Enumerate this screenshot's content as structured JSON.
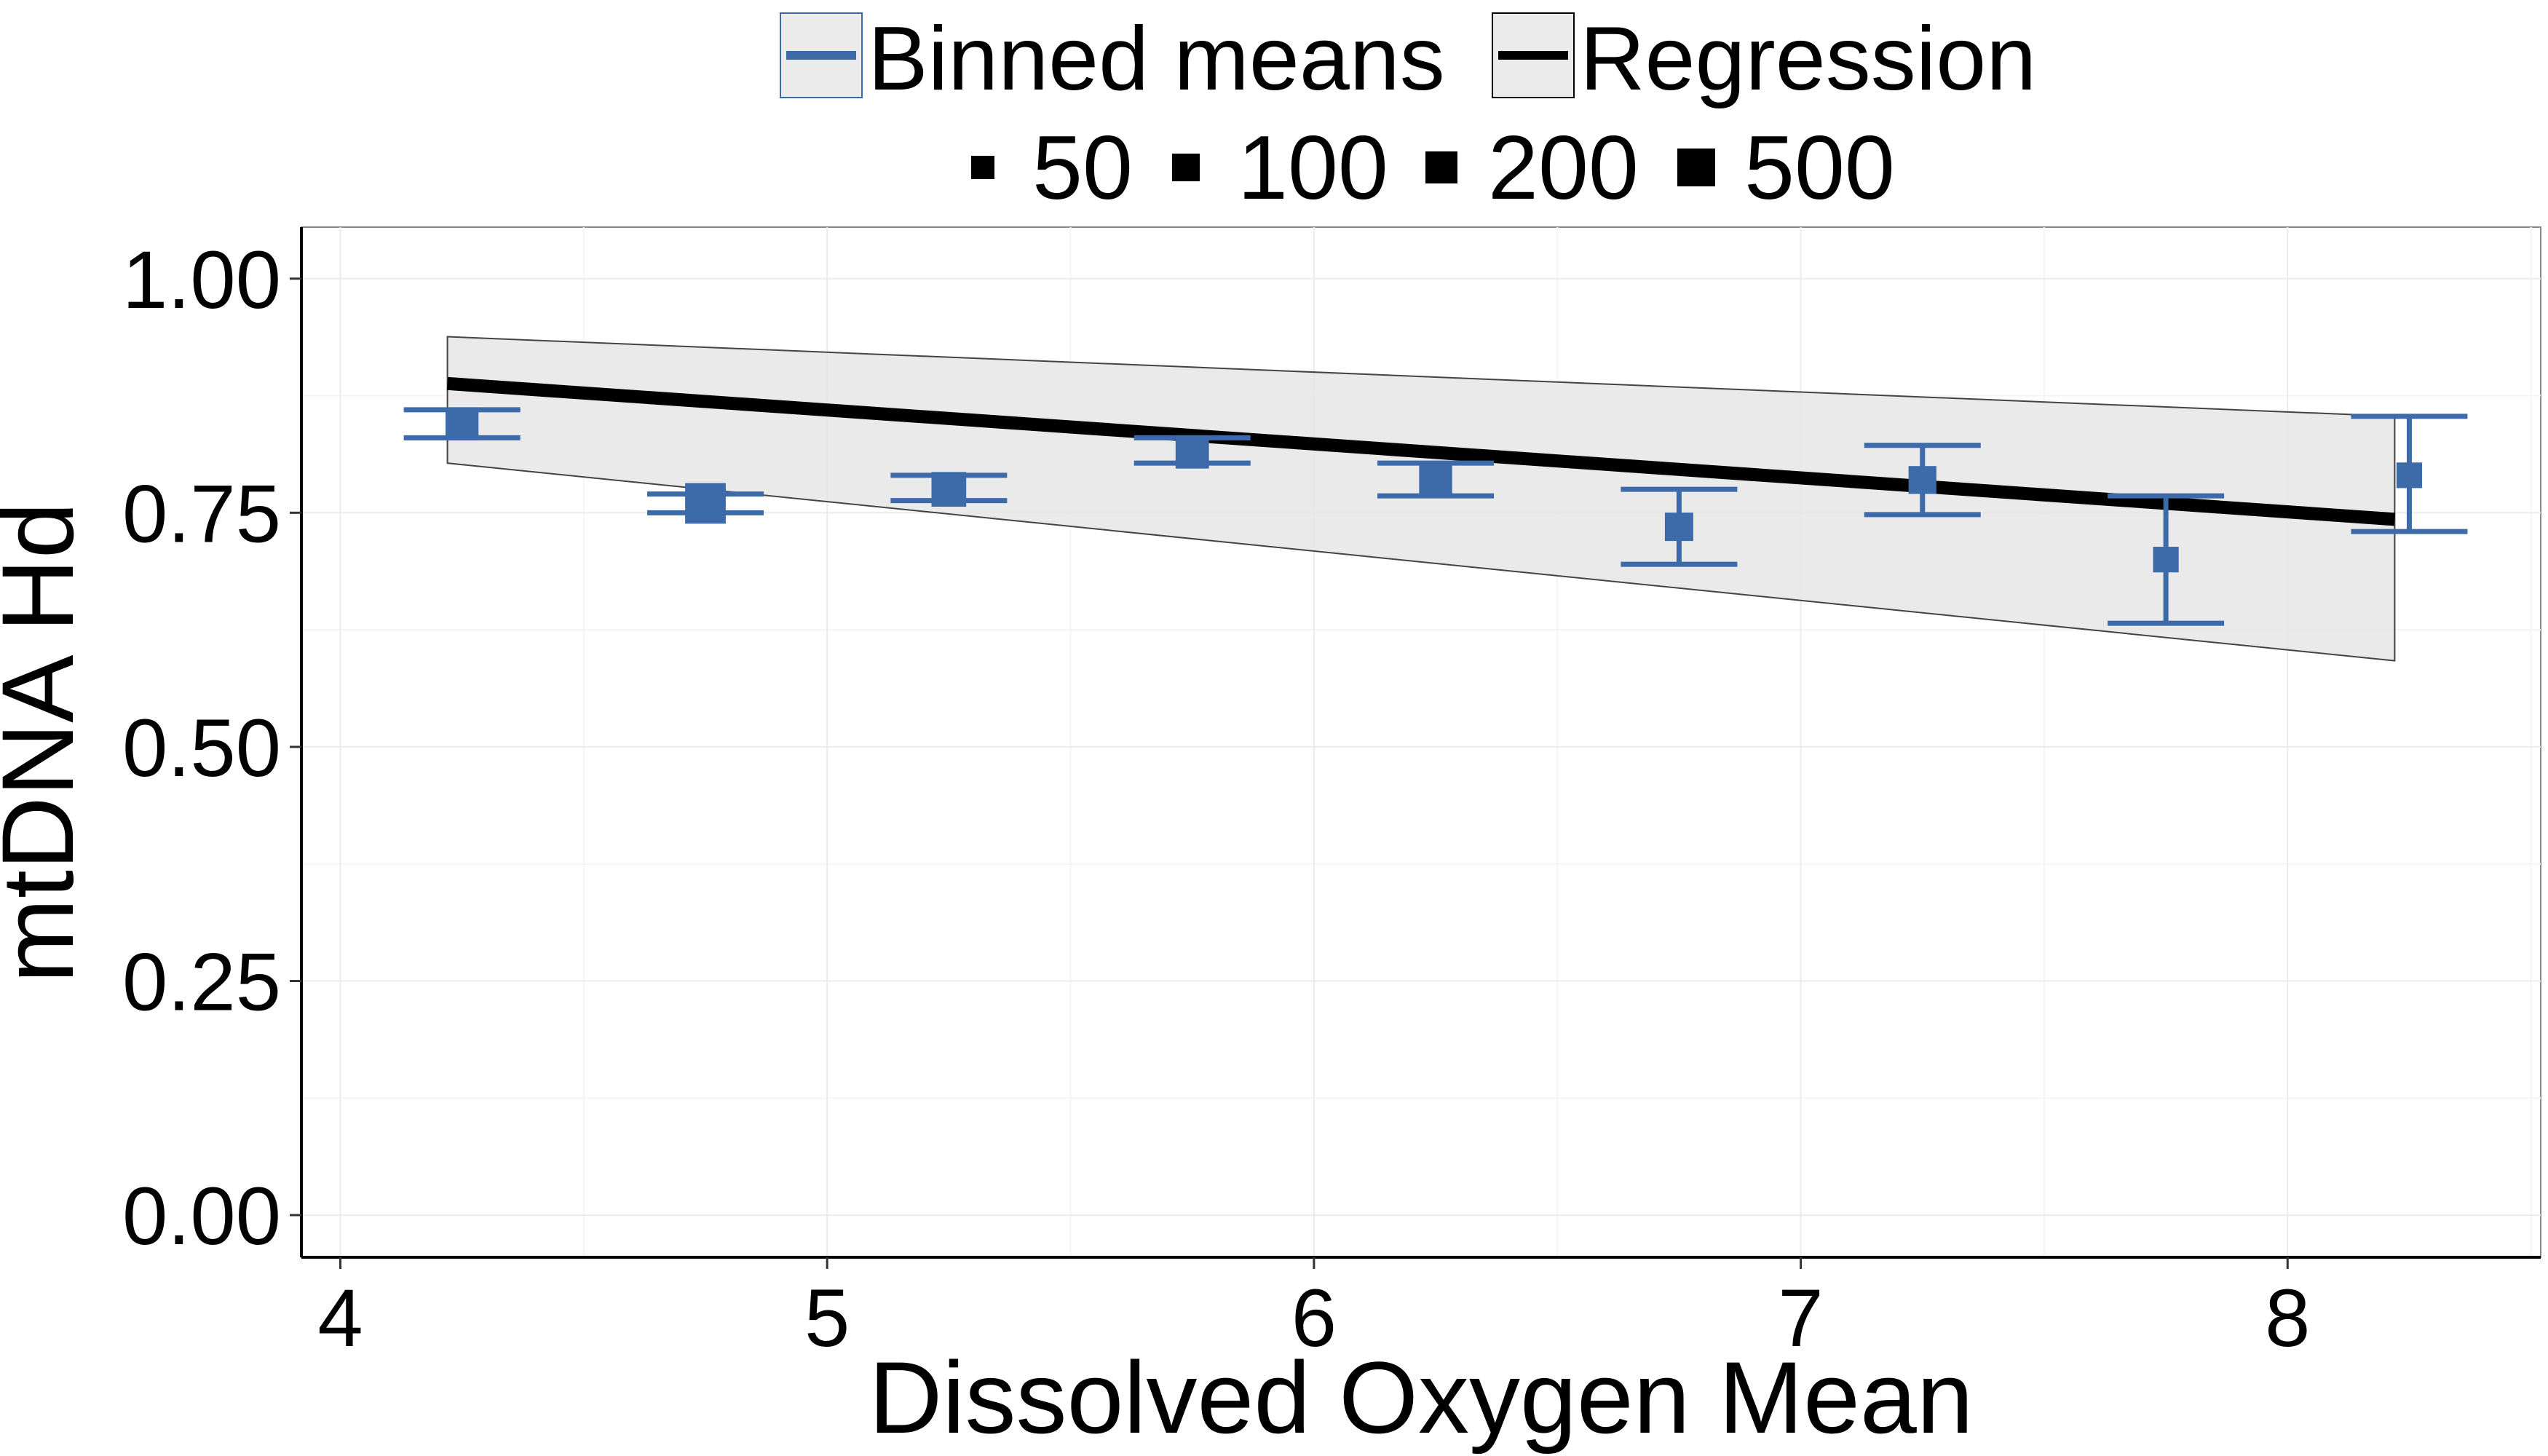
{
  "chart_data": {
    "type": "scatter",
    "title": "",
    "xlabel": "Dissolved Oxygen Mean",
    "ylabel": "mtDNA Hd",
    "xlim": [
      3.92,
      8.52
    ],
    "ylim": [
      -0.045,
      1.055
    ],
    "x_ticks": [
      "4",
      "5",
      "6",
      "7",
      "8"
    ],
    "y_ticks": [
      "0.00",
      "0.25",
      "0.50",
      "0.75",
      "1.00"
    ],
    "grid": true,
    "legend": {
      "placement": "top",
      "layers": [
        {
          "label": "Binned means",
          "color": "#3d6aa8"
        },
        {
          "label": "Regression",
          "color": "#000000"
        }
      ],
      "size_title": "",
      "size_items": [
        {
          "label": "50",
          "n": 50
        },
        {
          "label": "100",
          "n": 100
        },
        {
          "label": "200",
          "n": 200
        },
        {
          "label": "500",
          "n": 500
        }
      ]
    },
    "series": [
      {
        "name": "Binned means",
        "color": "#3d6aa8",
        "points": [
          {
            "x": 4.25,
            "y": 0.845,
            "ymin": 0.83,
            "ymax": 0.86,
            "n": 250
          },
          {
            "x": 4.75,
            "y": 0.76,
            "ymin": 0.75,
            "ymax": 0.77,
            "n": 500
          },
          {
            "x": 5.25,
            "y": 0.775,
            "ymin": 0.763,
            "ymax": 0.79,
            "n": 300
          },
          {
            "x": 5.75,
            "y": 0.815,
            "ymin": 0.803,
            "ymax": 0.83,
            "n": 260
          },
          {
            "x": 6.25,
            "y": 0.785,
            "ymin": 0.768,
            "ymax": 0.803,
            "n": 250
          },
          {
            "x": 6.75,
            "y": 0.735,
            "ymin": 0.695,
            "ymax": 0.775,
            "n": 140
          },
          {
            "x": 7.25,
            "y": 0.785,
            "ymin": 0.748,
            "ymax": 0.822,
            "n": 130
          },
          {
            "x": 7.75,
            "y": 0.7,
            "ymin": 0.632,
            "ymax": 0.768,
            "n": 90
          },
          {
            "x": 8.25,
            "y": 0.79,
            "ymin": 0.73,
            "ymax": 0.853,
            "n": 90
          }
        ]
      },
      {
        "name": "Regression",
        "color": "#000000",
        "line": [
          {
            "x": 4.22,
            "y": 0.888
          },
          {
            "x": 8.22,
            "y": 0.743
          }
        ],
        "ribbon": [
          {
            "x": 4.22,
            "lower": 0.803,
            "upper": 0.938
          },
          {
            "x": 8.22,
            "lower": 0.592,
            "upper": 0.853
          }
        ]
      }
    ]
  }
}
